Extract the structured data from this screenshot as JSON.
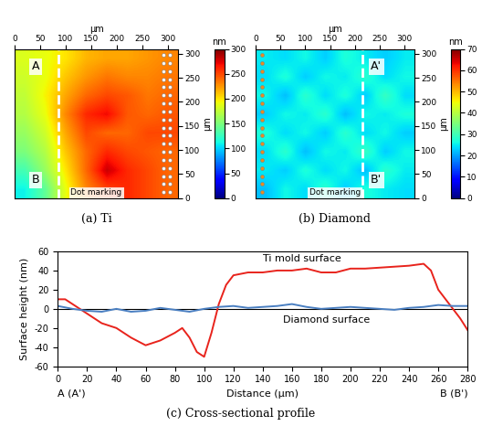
{
  "chart_data": [
    {
      "type": "heatmap",
      "title": "(a) Ti",
      "x_label": "μm",
      "y_label": "μm",
      "xlim": [
        0,
        320
      ],
      "ylim": [
        0,
        310
      ],
      "xticks": [
        0,
        50,
        100,
        150,
        200,
        250,
        300
      ],
      "yticks": [
        0,
        50,
        100,
        150,
        200,
        250,
        300
      ],
      "cells": [
        [
          110,
          140,
          190,
          230,
          250,
          260,
          250,
          240
        ],
        [
          130,
          160,
          200,
          240,
          280,
          260,
          250,
          240
        ],
        [
          150,
          170,
          210,
          240,
          260,
          250,
          245,
          240
        ],
        [
          160,
          180,
          220,
          250,
          240,
          240,
          250,
          250
        ],
        [
          170,
          190,
          230,
          260,
          270,
          245,
          240,
          245
        ],
        [
          175,
          195,
          220,
          240,
          250,
          245,
          235,
          240
        ],
        [
          180,
          190,
          210,
          225,
          235,
          230,
          230,
          235
        ],
        [
          185,
          190,
          200,
          215,
          220,
          220,
          225,
          230
        ]
      ],
      "colorbar": {
        "label": "nm",
        "range": [
          0,
          300
        ],
        "ticks": [
          0,
          50,
          100,
          150,
          200,
          250,
          300
        ]
      },
      "profile_x": 85,
      "annotations": [
        "A",
        "B",
        "Dot marking"
      ]
    },
    {
      "type": "heatmap",
      "title": "(b) Diamond",
      "x_label": "μm",
      "y_label": "μm",
      "xlim": [
        0,
        320
      ],
      "ylim": [
        0,
        310
      ],
      "xticks": [
        0,
        50,
        100,
        150,
        200,
        250,
        300
      ],
      "yticks": [
        0,
        50,
        100,
        150,
        200,
        250,
        300
      ],
      "cells": [
        [
          22,
          26,
          24,
          28,
          23,
          27,
          25,
          24
        ],
        [
          25,
          23,
          27,
          24,
          26,
          22,
          28,
          25
        ],
        [
          24,
          28,
          22,
          26,
          25,
          29,
          23,
          26
        ],
        [
          27,
          24,
          26,
          23,
          28,
          24,
          26,
          23
        ],
        [
          23,
          26,
          25,
          28,
          22,
          26,
          25,
          27
        ],
        [
          26,
          22,
          28,
          24,
          27,
          23,
          29,
          24
        ],
        [
          24,
          27,
          23,
          26,
          25,
          28,
          24,
          26
        ],
        [
          25,
          24,
          26,
          23,
          27,
          25,
          23,
          25
        ]
      ],
      "colorbar": {
        "label": "nm",
        "range": [
          0,
          70
        ],
        "ticks": [
          0,
          10,
          20,
          30,
          40,
          50,
          60,
          70
        ]
      },
      "profile_x": 215,
      "annotations": [
        "A'",
        "B'",
        "Dot marking"
      ]
    },
    {
      "type": "line",
      "title": "(c) Cross-sectional profile",
      "x_label": "Distance (μm)",
      "y_label": "Surface height (nm)",
      "xlim": [
        0,
        280
      ],
      "ylim": [
        -60,
        60
      ],
      "xticks": [
        0,
        20,
        40,
        60,
        80,
        100,
        120,
        140,
        160,
        180,
        200,
        220,
        240,
        260,
        280
      ],
      "yticks": [
        -60,
        -40,
        -20,
        0,
        20,
        40,
        60
      ],
      "reference_line": 0,
      "series": [
        {
          "name": "Ti mold surface",
          "color": "#e8231c",
          "x": [
            0,
            5,
            10,
            20,
            30,
            40,
            50,
            60,
            70,
            80,
            85,
            90,
            95,
            100,
            105,
            110,
            115,
            120,
            130,
            140,
            150,
            160,
            170,
            180,
            190,
            200,
            210,
            220,
            230,
            240,
            250,
            255,
            260,
            265,
            270,
            275,
            280
          ],
          "values": [
            10,
            10,
            5,
            -5,
            -15,
            -20,
            -30,
            -38,
            -33,
            -25,
            -20,
            -30,
            -45,
            -50,
            -25,
            5,
            25,
            35,
            38,
            38,
            40,
            40,
            42,
            38,
            38,
            42,
            42,
            43,
            44,
            45,
            47,
            40,
            20,
            10,
            0,
            -10,
            -22
          ]
        },
        {
          "name": "Diamond surface",
          "color": "#4a7fc1",
          "x": [
            0,
            10,
            20,
            30,
            40,
            50,
            60,
            70,
            80,
            90,
            100,
            110,
            120,
            130,
            140,
            150,
            160,
            170,
            180,
            190,
            200,
            210,
            220,
            230,
            240,
            250,
            260,
            270,
            280
          ],
          "values": [
            3,
            0,
            -2,
            -3,
            0,
            -3,
            -2,
            1,
            -1,
            -3,
            0,
            2,
            3,
            1,
            2,
            3,
            5,
            2,
            0,
            1,
            2,
            1,
            0,
            -1,
            1,
            2,
            4,
            3,
            3
          ]
        }
      ],
      "annotations": [
        "A (A')",
        "B (B')"
      ]
    }
  ]
}
